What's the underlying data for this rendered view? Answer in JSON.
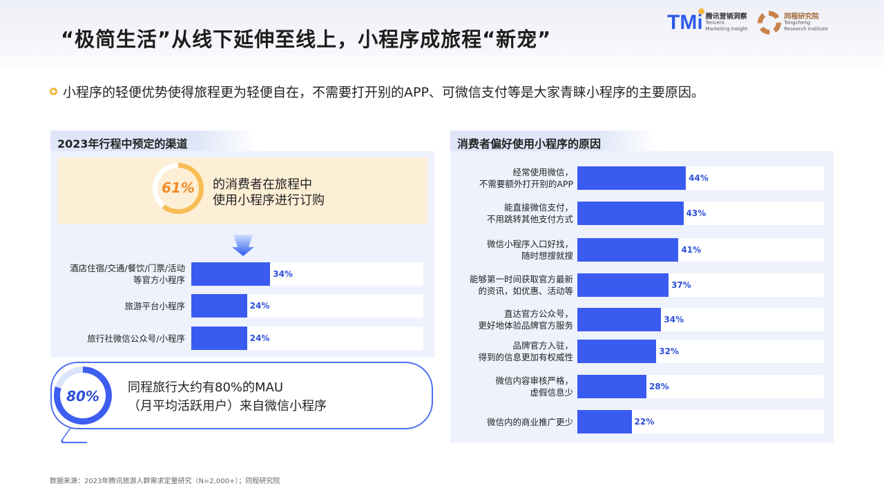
{
  "title": "“极简生活”从线下延伸至线上，小程序成旅程“新宠”",
  "logos": {
    "tmi": {
      "mark": "TMi",
      "cn": "腾讯营销洞察",
      "en1": "Tencent",
      "en2": "Marketing Insight"
    },
    "tongcheng": {
      "cn": "同程研究院",
      "en1": "Tongcheng",
      "en2": "Research Institute"
    }
  },
  "bullet": "小程序的轻便优势使得旅程更为轻便自在，不需要打开别的APP、可微信支付等是大家青睐小程序的主要原因。",
  "left": {
    "header": "2023年行程中预定的渠道",
    "highlight": {
      "value": "61%",
      "fraction": 0.61,
      "line1": "的消费者在旅程中",
      "line2": "使用小程序进行订购"
    },
    "bubble": {
      "value": "80%",
      "fraction": 0.8,
      "line1": "同程旅行大约有80%的MAU",
      "line2": "（月平均活跃用户）来自微信小程序"
    }
  },
  "right": {
    "header": "消费者偏好使用小程序的原因"
  },
  "chart_data": [
    {
      "type": "bar",
      "orientation": "horizontal",
      "title": "2023年行程中预定的渠道",
      "categories": [
        [
          "酒店住宿/交通/餐饮/门票/活动",
          "等官方小程序"
        ],
        [
          "旅游平台小程序"
        ],
        [
          "旅行社微信公众号/小程序"
        ]
      ],
      "values": [
        34,
        24,
        24
      ],
      "labels": [
        "34%",
        "24%",
        "24%"
      ],
      "xlim": [
        0,
        100
      ],
      "color": "#3a5bef"
    },
    {
      "type": "bar",
      "orientation": "horizontal",
      "title": "消费者偏好使用小程序的原因",
      "categories": [
        [
          "经常使用微信，",
          "不需要额外打开别的APP"
        ],
        [
          "能直接微信支付，",
          "不用跳转其他支付方式"
        ],
        [
          "微信小程序入口好找，",
          "随时想搜就搜"
        ],
        [
          "能够第一时间获取官方最新",
          "的资讯，如优惠、活动等"
        ],
        [
          "直达官方公众号，",
          "更好地体验品牌官方服务"
        ],
        [
          "品牌官方入驻，",
          "得到的信息更加有权威性"
        ],
        [
          "微信内容审核严格，",
          "虚假信息少"
        ],
        [
          "微信内的商业推广更少"
        ]
      ],
      "values": [
        44,
        43,
        41,
        37,
        34,
        32,
        28,
        22
      ],
      "labels": [
        "44%",
        "43%",
        "41%",
        "37%",
        "34%",
        "32%",
        "28%",
        "22%"
      ],
      "xlim": [
        0,
        100
      ],
      "color": "#3a5bef"
    }
  ],
  "footer": "数据来源：2023年腾讯旅游人群需求定量研究（N=2,000+）；同程研究院"
}
